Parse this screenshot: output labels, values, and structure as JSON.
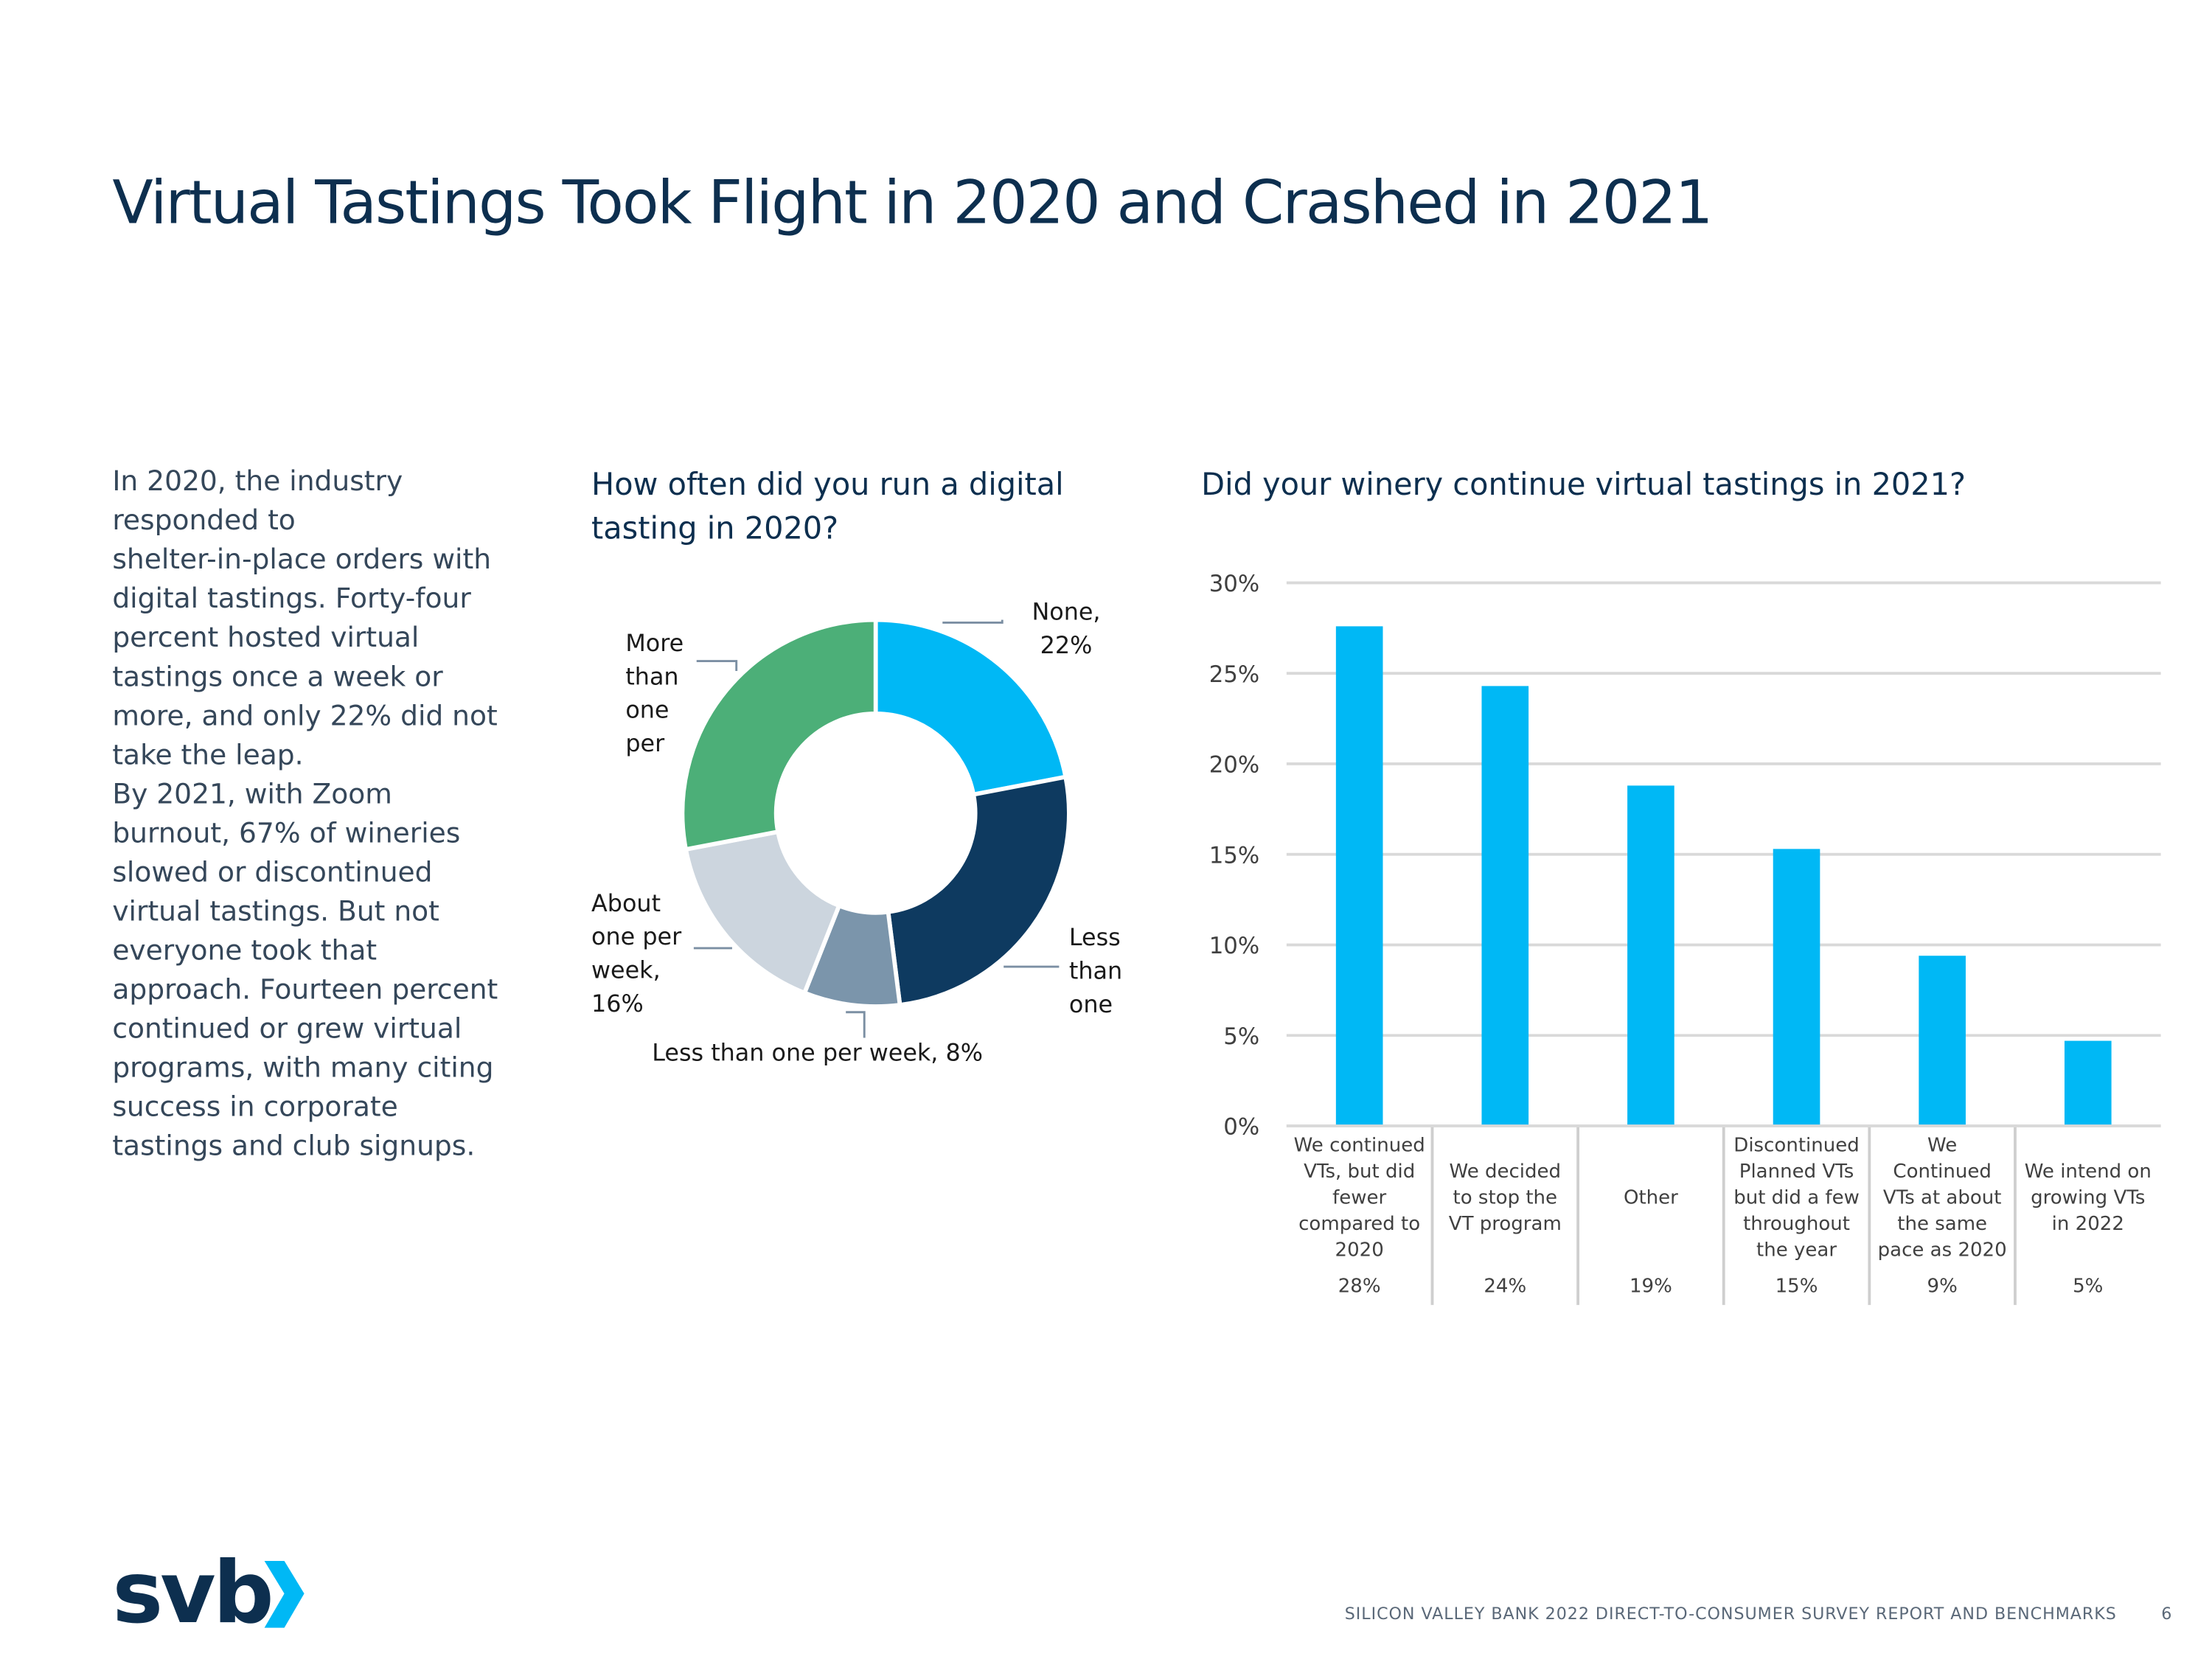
{
  "header": {
    "title": "Virtual Tastings Took Flight in 2020 and Crashed in 2021"
  },
  "body": {
    "paragraphs": [
      "In 2020, the industry responded to shelter-in-place orders with digital tastings. Forty-four percent hosted virtual tastings once a week or more, and only 22% did not take the leap.",
      "By 2021, with Zoom burnout, 67% of wineries slowed or discontinued virtual tastings. But not everyone took that approach. Fourteen percent continued or grew virtual programs, with many citing success in corporate tastings and club signups."
    ]
  },
  "chart_data": [
    {
      "type": "donut",
      "title": "How often did you run a digital tasting in 2020?",
      "categories": [
        "None, 22%",
        "Less than one",
        "Less than one per week, 8%",
        "About one per week, 16%",
        "More than one per"
      ],
      "values": [
        22,
        26,
        8,
        16,
        28
      ],
      "colors": [
        "#00b8f5",
        "#0e3a60",
        "#7b95ab",
        "#ccd5de",
        "#4caf78"
      ]
    },
    {
      "type": "bar",
      "title": "Did your winery continue virtual tastings in 2021?",
      "categories": [
        "We continued VTs, but did fewer compared to 2020",
        "We decided to stop the VT program",
        "Other",
        "Discontinued Planned VTs but did a few throughout the year",
        "We Continued VTs at about the same pace as 2020",
        "We intend on growing VTs in 2022"
      ],
      "values": [
        27.6,
        24.3,
        18.8,
        15.3,
        9.4,
        4.7
      ],
      "value_labels": [
        "28%",
        "24%",
        "19%",
        "15%",
        "9%",
        "5%"
      ],
      "color": "#00b8f5",
      "ylim": [
        0,
        30
      ],
      "yticks": [
        {
          "value": 0,
          "label": "0%"
        },
        {
          "value": 5,
          "label": "5%"
        },
        {
          "value": 10,
          "label": "10%"
        },
        {
          "value": 15,
          "label": "15%"
        },
        {
          "value": 20,
          "label": "20%"
        },
        {
          "value": 25,
          "label": "25%"
        },
        {
          "value": 30,
          "label": "30%"
        }
      ],
      "grid": true
    }
  ],
  "footer": {
    "logo": "svb",
    "text": "SILICON VALLEY BANK 2022 DIRECT-TO-CONSUMER SURVEY REPORT AND BENCHMARKS",
    "page": "6"
  }
}
